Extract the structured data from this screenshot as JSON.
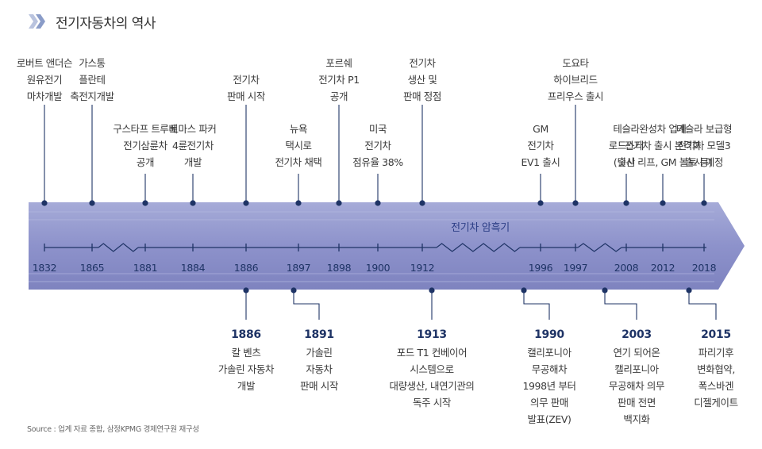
{
  "header": {
    "title": "전기자동차의 역사"
  },
  "era_label": "전기차 암흑기",
  "source": "Source : 업계 자료 종합, 삼정KPMG 경제연구원 재구성",
  "colors": {
    "arrow": "#8a8fc8",
    "navy": "#1f3466",
    "chevron1": "#b9c3de",
    "chevron2": "#8a9cc8"
  },
  "timeline_years": [
    "1832",
    "1865",
    "1881",
    "1884",
    "1886",
    "1897",
    "1898",
    "1900",
    "1912",
    "1996",
    "1997",
    "2008",
    "2012",
    "2018"
  ],
  "top_events": [
    {
      "year": "1832",
      "lines": [
        "로버트 앤더슨",
        "원유전기",
        "마차개발"
      ]
    },
    {
      "year": "1865",
      "lines": [
        "가스통",
        "플란테",
        "축전지개발"
      ]
    },
    {
      "year": "1881",
      "lines": [
        "구스타프 트루베",
        "전기삼륜차",
        "공개"
      ]
    },
    {
      "year": "1884",
      "lines": [
        "토마스 파커",
        "4륜전기차",
        "개발"
      ]
    },
    {
      "year": "1886",
      "lines": [
        "전기차",
        "판매 시작"
      ]
    },
    {
      "year": "1897",
      "lines": [
        "뉴욕",
        "택시로",
        "전기차 채택"
      ]
    },
    {
      "year": "1898",
      "lines": [
        "포르쉐",
        "전기차 P1",
        "공개"
      ]
    },
    {
      "year": "1900",
      "lines": [
        "미국",
        "전기차",
        "점유율 38%"
      ]
    },
    {
      "year": "1912",
      "lines": [
        "전기차",
        "생산 및",
        "판매 정점"
      ]
    },
    {
      "year": "1996",
      "lines": [
        "GM",
        "전기차",
        "EV1 출시"
      ]
    },
    {
      "year": "1997",
      "lines": [
        "도요타",
        "하이브리드",
        "프리우스 출시"
      ]
    },
    {
      "year": "2008",
      "lines": [
        "테슬라",
        "로드스터",
        "출시"
      ]
    },
    {
      "year": "2012",
      "lines": [
        "완성차 업계",
        "전기차 출시 본격화",
        "(닛산 리프, GM 볼트 등)"
      ]
    },
    {
      "year": "2018",
      "lines": [
        "테슬라 보급형",
        "전기차 모델3",
        "출시 예정"
      ]
    }
  ],
  "bottom_events": [
    {
      "year": "1886",
      "lines": [
        "칼 벤츠",
        "가솔린 자동차",
        "개발"
      ]
    },
    {
      "year": "1891",
      "lines": [
        "가솔린",
        "자동차",
        "판매 시작"
      ]
    },
    {
      "year": "1913",
      "lines": [
        "포드 T1 컨베이어",
        "시스템으로",
        "대량생산, 내연기관의",
        "독주 시작"
      ]
    },
    {
      "year": "1990",
      "lines": [
        "캘리포니아",
        "무공해차",
        "1998년 부터",
        "의무 판매",
        "발표(ZEV)"
      ]
    },
    {
      "year": "2003",
      "lines": [
        "연기 되어온",
        "캘리포니아",
        "무공해차 의무",
        "판매 전면",
        "백지화"
      ]
    },
    {
      "year": "2015",
      "lines": [
        "파리기후",
        "변화협약,",
        "폭스바겐",
        "디젤게이트"
      ]
    }
  ]
}
